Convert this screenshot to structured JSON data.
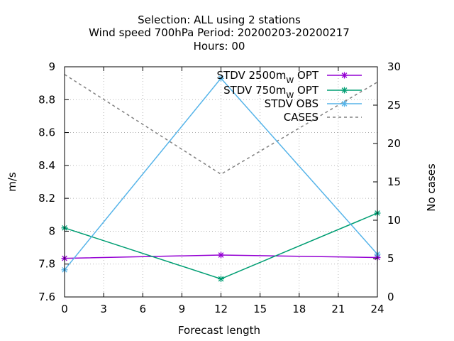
{
  "chart_data": {
    "type": "line",
    "title": [
      "Selection: ALL using     2 stations",
      "Wind speed 700hPa   Period: 20200203-20200217",
      "Hours:  00"
    ],
    "xlabel": "Forecast length",
    "ylabel": "m/s",
    "y2label": "No cases",
    "xlim": [
      0,
      24
    ],
    "ylim": [
      7.6,
      9.0
    ],
    "y2lim": [
      0,
      30
    ],
    "xticks": [
      "0",
      "3",
      "6",
      "9",
      "12",
      "15",
      "18",
      "21",
      "24"
    ],
    "yticks": [
      "7.6",
      "7.8",
      "8",
      "8.2",
      "8.4",
      "8.6",
      "8.8",
      "9"
    ],
    "y2ticks": [
      "0",
      "5",
      "10",
      "15",
      "20",
      "25",
      "30"
    ],
    "grid": true,
    "legend_position": "top-right",
    "x": [
      0,
      12,
      24
    ],
    "series": [
      {
        "name": "STDV 2500m",
        "name_sub": "W",
        "name_suffix": " OPT",
        "color": "#9400d3",
        "marker": "star",
        "axis": "y",
        "values": [
          7.835,
          7.855,
          7.84
        ]
      },
      {
        "name": "STDV 750m",
        "name_sub": "W",
        "name_suffix": " OPT",
        "color": "#009e73",
        "marker": "star",
        "axis": "y",
        "values": [
          8.02,
          7.71,
          8.11
        ]
      },
      {
        "name": "STDV OBS",
        "name_sub": "",
        "name_suffix": "",
        "color": "#56b4e9",
        "marker": "star",
        "axis": "y",
        "values": [
          7.765,
          8.93,
          7.86
        ]
      },
      {
        "name": "CASES",
        "name_sub": "",
        "name_suffix": "",
        "color": "#808080",
        "marker": "none",
        "dashed": true,
        "axis": "y2",
        "values": [
          29,
          16,
          28
        ]
      }
    ]
  }
}
